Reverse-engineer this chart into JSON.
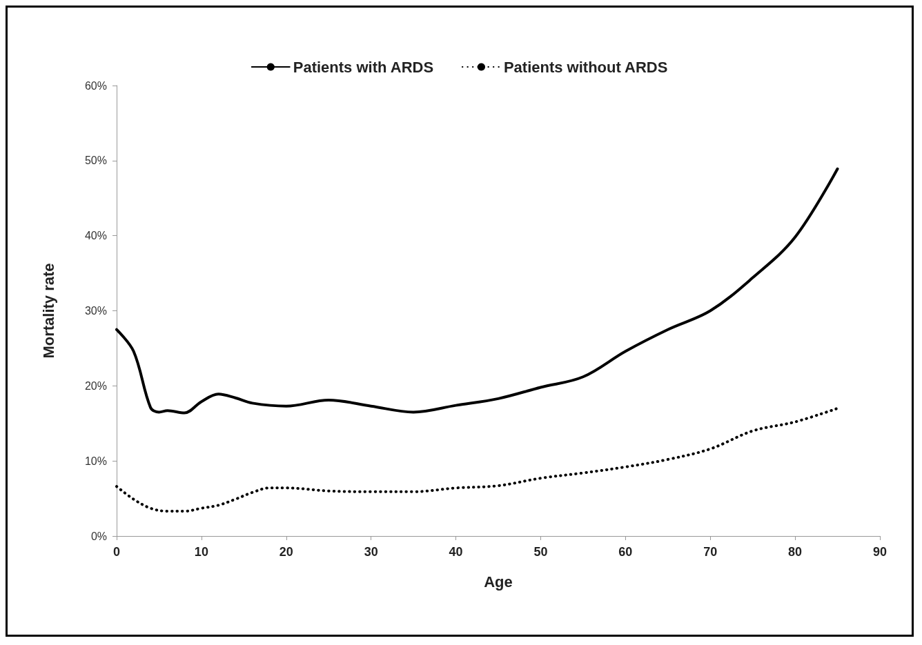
{
  "chart_data": {
    "type": "line",
    "xlabel": "Age",
    "ylabel": "Mortality rate",
    "xlim": [
      0,
      90
    ],
    "xticks": [
      0,
      10,
      20,
      30,
      40,
      50,
      60,
      70,
      80,
      90
    ],
    "ylim": [
      0,
      60
    ],
    "yticks": [
      {
        "value": 0,
        "label": "0%"
      },
      {
        "value": 10,
        "label": "10%"
      },
      {
        "value": 20,
        "label": "20%"
      },
      {
        "value": 30,
        "label": "30%"
      },
      {
        "value": 40,
        "label": "40%"
      },
      {
        "value": 50,
        "label": "50%"
      },
      {
        "value": 60,
        "label": "60%"
      }
    ],
    "grid": false,
    "legend": "top",
    "marker": "none",
    "series": [
      {
        "name": "Patients with ARDS",
        "color": "#000000",
        "line_style": "solid",
        "x": [
          0,
          2,
          4,
          5,
          6,
          8,
          10,
          12,
          14,
          16,
          20,
          25,
          30,
          35,
          40,
          45,
          50,
          55,
          60,
          65,
          70,
          75,
          80,
          85
        ],
        "values": [
          27.5,
          24.6,
          17.1,
          16.5,
          16.7,
          16.4,
          17.9,
          18.9,
          18.4,
          17.7,
          17.3,
          18.1,
          17.3,
          16.5,
          17.4,
          18.3,
          19.8,
          21.2,
          24.6,
          27.5,
          30.0,
          34.4,
          39.8,
          48.9
        ]
      },
      {
        "name": "Patients without ARDS",
        "color": "#000000",
        "line_style": "dotted",
        "x": [
          0,
          2,
          4,
          6,
          8,
          10,
          12,
          14,
          16,
          18,
          20,
          25,
          30,
          35,
          40,
          45,
          50,
          55,
          60,
          65,
          70,
          75,
          80,
          85
        ],
        "values": [
          6.6,
          4.9,
          3.7,
          3.3,
          3.3,
          3.7,
          4.1,
          4.9,
          5.8,
          6.4,
          6.4,
          6.0,
          5.9,
          5.9,
          6.4,
          6.7,
          7.7,
          8.4,
          9.2,
          10.2,
          11.6,
          14.0,
          15.2,
          17.0
        ]
      }
    ]
  }
}
